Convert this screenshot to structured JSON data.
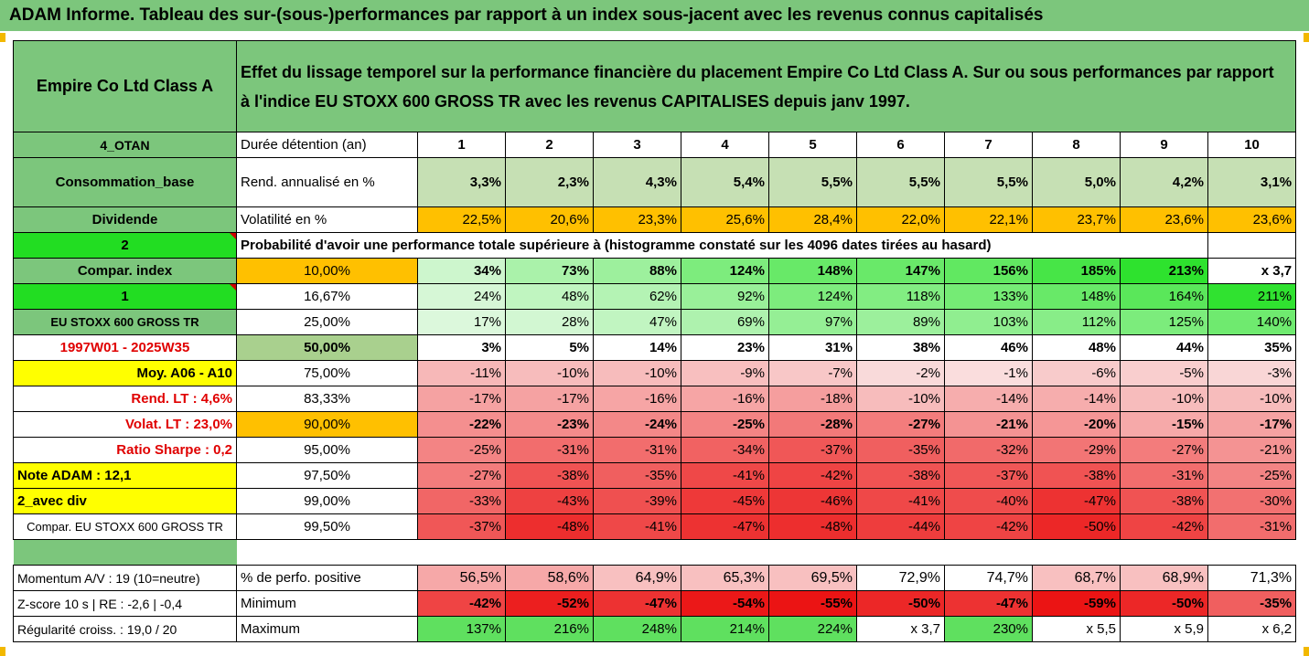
{
  "title": "ADAM Informe. Tableau des sur-(sous-)performances par rapport à un index sous-jacent avec les revenus connus capitalisés",
  "header": {
    "asset": "Empire Co Ltd Class A",
    "description_line1": "Effet du lissage temporel sur la performance financière du placement Empire Co Ltd Class A. Sur ou sous performances par rapport",
    "description_line2": "à l'indice EU STOXX 600 GROSS TR avec les revenus CAPITALISES depuis janv 1997."
  },
  "left_labels": {
    "otan": "4_OTAN",
    "consommation": "Consommation_base",
    "dividende": "Dividende",
    "two": "2",
    "compar_index": "Compar. index",
    "one": "1",
    "index_name": "EU STOXX 600 GROSS TR",
    "period": "1997W01 - 2025W35",
    "moy": "Moy. A06 - A10",
    "rend_lt": "Rend. LT :    4,6%",
    "volat_lt": "Volat. LT :    23,0%",
    "sharpe": "Ratio Sharpe :    0,2",
    "note": "Note ADAM : 12,1",
    "avec_div": "2_avec div",
    "compar_eu": "Compar. EU STOXX 600 GROSS TR",
    "momentum": "Momentum A/V : 19 (10=neutre)",
    "zscore": "Z-score 10 s  |  RE : -2,6  |  -0,4",
    "regularite": "Régularité croiss. : 19,0 / 20"
  },
  "row_headers": {
    "duree": "Durée détention (an)",
    "rend": "Rend. annualisé en %",
    "volat": "Volatilité en %",
    "proba": "Probabilité d'avoir une performance totale supérieure à (histogramme constaté sur les 4096 dates tirées au hasard)",
    "perf_pos": "% de perfo. positive",
    "minimum": "Minimum",
    "maximum": "Maximum"
  },
  "years": [
    "1",
    "2",
    "3",
    "4",
    "5",
    "6",
    "7",
    "8",
    "9",
    "10"
  ],
  "rend": [
    "3,3%",
    "2,3%",
    "4,3%",
    "5,4%",
    "5,5%",
    "5,5%",
    "5,5%",
    "5,0%",
    "4,2%",
    "3,1%"
  ],
  "volat": [
    "22,5%",
    "20,6%",
    "23,3%",
    "25,6%",
    "28,4%",
    "22,0%",
    "22,1%",
    "23,7%",
    "23,6%",
    "23,6%"
  ],
  "quantile_rows": [
    {
      "q": "10,00%",
      "values": [
        "34%",
        "73%",
        "88%",
        "124%",
        "148%",
        "147%",
        "156%",
        "185%",
        "213%",
        "x 3,7"
      ]
    },
    {
      "q": "16,67%",
      "values": [
        "24%",
        "48%",
        "62%",
        "92%",
        "124%",
        "118%",
        "133%",
        "148%",
        "164%",
        "211%"
      ]
    },
    {
      "q": "25,00%",
      "values": [
        "17%",
        "28%",
        "47%",
        "69%",
        "97%",
        "89%",
        "103%",
        "112%",
        "125%",
        "140%"
      ]
    },
    {
      "q": "50,00%",
      "values": [
        "3%",
        "5%",
        "14%",
        "23%",
        "31%",
        "38%",
        "46%",
        "48%",
        "44%",
        "35%"
      ]
    },
    {
      "q": "75,00%",
      "values": [
        "-11%",
        "-10%",
        "-10%",
        "-9%",
        "-7%",
        "-2%",
        "-1%",
        "-6%",
        "-5%",
        "-3%"
      ]
    },
    {
      "q": "83,33%",
      "values": [
        "-17%",
        "-17%",
        "-16%",
        "-16%",
        "-18%",
        "-10%",
        "-14%",
        "-14%",
        "-10%",
        "-10%"
      ]
    },
    {
      "q": "90,00%",
      "values": [
        "-22%",
        "-23%",
        "-24%",
        "-25%",
        "-28%",
        "-27%",
        "-21%",
        "-20%",
        "-15%",
        "-17%"
      ]
    },
    {
      "q": "95,00%",
      "values": [
        "-25%",
        "-31%",
        "-31%",
        "-34%",
        "-37%",
        "-35%",
        "-32%",
        "-29%",
        "-27%",
        "-21%"
      ]
    },
    {
      "q": "97,50%",
      "values": [
        "-27%",
        "-38%",
        "-35%",
        "-41%",
        "-42%",
        "-38%",
        "-37%",
        "-38%",
        "-31%",
        "-25%"
      ]
    },
    {
      "q": "99,00%",
      "values": [
        "-33%",
        "-43%",
        "-39%",
        "-45%",
        "-46%",
        "-41%",
        "-40%",
        "-47%",
        "-38%",
        "-30%"
      ]
    },
    {
      "q": "99,50%",
      "values": [
        "-37%",
        "-48%",
        "-41%",
        "-47%",
        "-48%",
        "-44%",
        "-42%",
        "-50%",
        "-42%",
        "-31%"
      ]
    }
  ],
  "perf_pos": [
    "56,5%",
    "58,6%",
    "64,9%",
    "65,3%",
    "69,5%",
    "72,9%",
    "74,7%",
    "68,7%",
    "68,9%",
    "71,3%"
  ],
  "minimum": [
    "-42%",
    "-52%",
    "-47%",
    "-54%",
    "-55%",
    "-50%",
    "-47%",
    "-59%",
    "-50%",
    "-35%"
  ],
  "maximum": [
    "137%",
    "216%",
    "248%",
    "214%",
    "224%",
    "x 3,7",
    "230%",
    "x 5,5",
    "x 5,9",
    "x 6,2"
  ],
  "colors": {
    "header_green": "#7cc67c",
    "rend_bg": "#c6e0b4",
    "volat_bg": "#ffc000",
    "label_yellow": "#ffff00",
    "label_bright_green": "#22dd22",
    "red_text": "#e00000"
  }
}
